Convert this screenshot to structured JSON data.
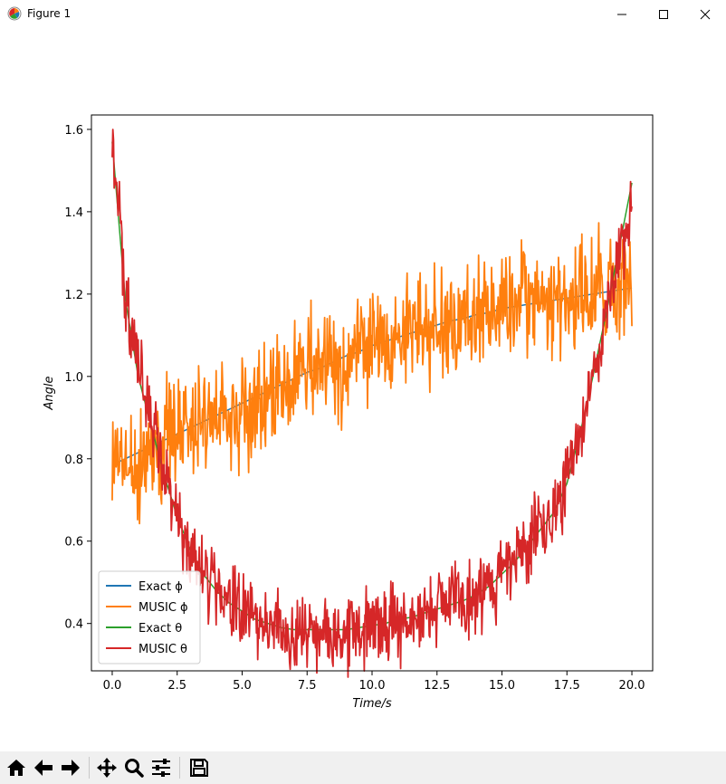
{
  "window": {
    "title": "Figure 1",
    "app_icon": "matplotlib-icon",
    "controls": [
      {
        "name": "minimize-button",
        "icon": "minimize-icon"
      },
      {
        "name": "maximize-button",
        "icon": "maximize-icon"
      },
      {
        "name": "close-button",
        "icon": "close-icon"
      }
    ]
  },
  "toolbar": {
    "buttons": [
      {
        "name": "home-button",
        "icon": "home-icon"
      },
      {
        "name": "back-button",
        "icon": "arrow-left-icon"
      },
      {
        "name": "forward-button",
        "icon": "arrow-right-icon"
      },
      {
        "name": "pan-button",
        "icon": "move-icon"
      },
      {
        "name": "zoom-button",
        "icon": "magnifier-icon"
      },
      {
        "name": "configure-subplots-button",
        "icon": "sliders-icon"
      },
      {
        "name": "save-button",
        "icon": "floppy-disk-icon"
      }
    ]
  },
  "chart_data": {
    "type": "line",
    "title": "",
    "xlabel": "Time/s",
    "ylabel": "Angle",
    "xlim": [
      -0.8,
      20.8
    ],
    "ylim": [
      0.285,
      1.635
    ],
    "xticks": [
      0.0,
      2.5,
      5.0,
      7.5,
      10.0,
      12.5,
      15.0,
      17.5,
      20.0
    ],
    "xtick_labels": [
      "0.0",
      "2.5",
      "5.0",
      "7.5",
      "10.0",
      "12.5",
      "15.0",
      "17.5",
      "20.0"
    ],
    "yticks": [
      0.4,
      0.6,
      0.8,
      1.0,
      1.2,
      1.4,
      1.6
    ],
    "ytick_labels": [
      "0.4",
      "0.6",
      "0.8",
      "1.0",
      "1.2",
      "1.4",
      "1.6"
    ],
    "grid": false,
    "legend_position": "lower-left",
    "x": [
      0,
      0.5,
      1,
      1.5,
      2,
      2.5,
      3,
      3.5,
      4,
      4.5,
      5,
      5.5,
      6,
      6.5,
      7,
      7.5,
      8,
      8.5,
      9,
      9.5,
      10,
      10.5,
      11,
      11.5,
      12,
      12.5,
      13,
      13.5,
      14,
      14.5,
      15,
      15.5,
      16,
      16.5,
      17,
      17.5,
      18,
      18.5,
      19,
      19.5,
      20
    ],
    "series": [
      {
        "name": "Exact ϕ",
        "color": "#1f77b4",
        "style": "smooth",
        "values": [
          0.785,
          0.8,
          0.815,
          0.83,
          0.845,
          0.86,
          0.875,
          0.89,
          0.905,
          0.92,
          0.935,
          0.95,
          0.965,
          0.98,
          0.995,
          1.01,
          1.02,
          1.035,
          1.05,
          1.06,
          1.075,
          1.085,
          1.095,
          1.105,
          1.115,
          1.125,
          1.135,
          1.14,
          1.15,
          1.155,
          1.165,
          1.17,
          1.175,
          1.18,
          1.185,
          1.19,
          1.195,
          1.2,
          1.205,
          1.21,
          1.215
        ]
      },
      {
        "name": "MUSIC ϕ",
        "color": "#ff7f0e",
        "style": "noisy",
        "noise_amplitude": 0.12,
        "values": [
          0.785,
          0.8,
          0.815,
          0.83,
          0.845,
          0.86,
          0.875,
          0.89,
          0.905,
          0.92,
          0.935,
          0.95,
          0.965,
          0.98,
          0.995,
          1.01,
          1.02,
          1.035,
          1.05,
          1.06,
          1.075,
          1.085,
          1.095,
          1.105,
          1.115,
          1.125,
          1.135,
          1.14,
          1.15,
          1.155,
          1.165,
          1.17,
          1.175,
          1.18,
          1.185,
          1.19,
          1.195,
          1.2,
          1.205,
          1.21,
          1.215
        ]
      },
      {
        "name": "Exact θ",
        "color": "#2ca02c",
        "style": "smooth",
        "values": [
          1.57,
          1.19,
          1.0,
          0.88,
          0.76,
          0.66,
          0.58,
          0.52,
          0.48,
          0.45,
          0.43,
          0.41,
          0.4,
          0.39,
          0.385,
          0.385,
          0.385,
          0.385,
          0.385,
          0.39,
          0.395,
          0.4,
          0.41,
          0.415,
          0.425,
          0.435,
          0.445,
          0.455,
          0.47,
          0.49,
          0.52,
          0.55,
          0.59,
          0.63,
          0.67,
          0.74,
          0.86,
          1.0,
          1.15,
          1.31,
          1.47
        ]
      },
      {
        "name": "MUSIC θ",
        "color": "#d62728",
        "style": "noisy",
        "noise_amplitude": 0.08,
        "values": [
          1.55,
          1.22,
          1.03,
          0.89,
          0.78,
          0.66,
          0.58,
          0.52,
          0.49,
          0.45,
          0.43,
          0.41,
          0.4,
          0.39,
          0.385,
          0.385,
          0.385,
          0.385,
          0.385,
          0.39,
          0.395,
          0.4,
          0.41,
          0.415,
          0.425,
          0.435,
          0.445,
          0.455,
          0.47,
          0.49,
          0.52,
          0.55,
          0.59,
          0.63,
          0.67,
          0.74,
          0.86,
          1.0,
          1.15,
          1.31,
          1.4
        ]
      }
    ],
    "legend": [
      "Exact ϕ",
      "MUSIC ϕ",
      "Exact θ",
      "MUSIC θ"
    ]
  }
}
